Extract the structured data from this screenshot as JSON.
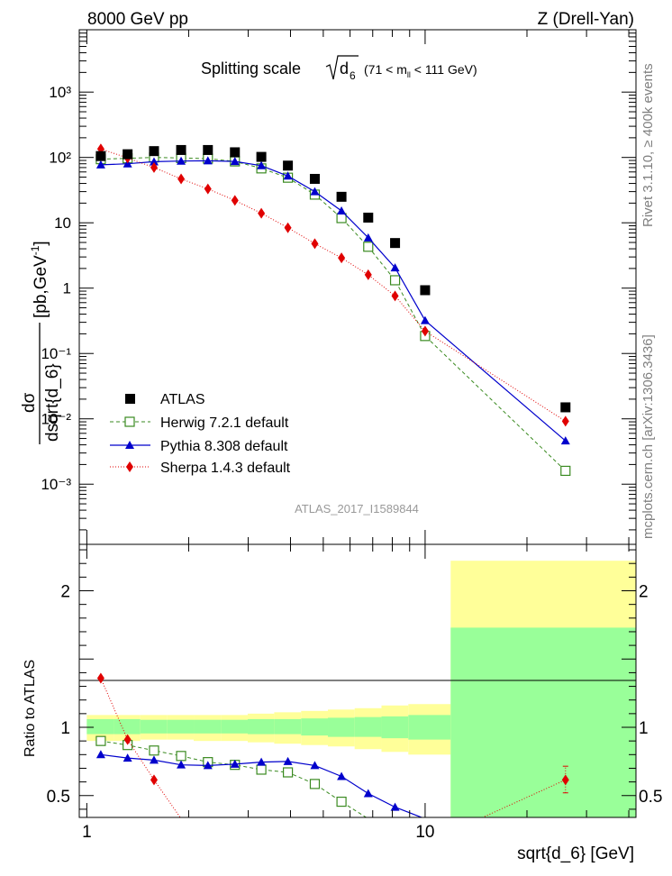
{
  "header": {
    "left": "8000 GeV pp",
    "right": "Z (Drell-Yan)"
  },
  "side_labels": {
    "rivet": "Rivet 3.1.10, ≥ 400k events",
    "mcplots": "mcplots.cern.ch [arXiv:1306.3436]"
  },
  "colors": {
    "atlas": "#000000",
    "herwig": "#3a8a20",
    "pythia": "#0000cc",
    "sherpa": "#e00000",
    "band_inner": "#99ff99",
    "band_outer": "#ffff99"
  },
  "chart_data": [
    {
      "type": "scatter",
      "id": "main",
      "title": "Splitting scale",
      "title_math": "√d6",
      "title_range": "(71 < m_ll < 111 GeV)",
      "ylabel": "dσ / dsqrt{d_6} [pb,GeV⁻¹]",
      "yscale": "log",
      "xscale": "log",
      "xlim": [
        0.95,
        42
      ],
      "ylim": [
        0.00012,
        9000
      ],
      "ytick_labels": [
        "10⁻³",
        "10⁻²",
        "10⁻¹",
        "1",
        "10",
        "10²",
        "10³"
      ],
      "watermark": "ATLAS_2017_I1589844",
      "legend": [
        "ATLAS",
        "Herwig 7.2.1 default",
        "Pythia 8.308 default",
        "Sherpa 1.4.3 default"
      ],
      "series": [
        {
          "name": "ATLAS",
          "x": [
            1.1,
            1.32,
            1.58,
            1.9,
            2.28,
            2.74,
            3.28,
            3.93,
            4.72,
            5.66,
            6.79,
            8.15,
            10.0,
            26.0
          ],
          "values": [
            105,
            112,
            125,
            130,
            130,
            120,
            102,
            75,
            47,
            25,
            12,
            4.9,
            0.93,
            0.015
          ]
        },
        {
          "name": "Herwig 7.2.1 default",
          "x": [
            1.1,
            1.32,
            1.58,
            1.9,
            2.28,
            2.74,
            3.28,
            3.93,
            4.72,
            5.66,
            6.79,
            8.15,
            10.0,
            26.0
          ],
          "values": [
            94,
            97,
            100,
            98,
            96,
            87,
            68,
            49,
            27,
            11.8,
            4.3,
            1.32,
            0.185,
            0.0016
          ]
        },
        {
          "name": "Pythia 8.308 default",
          "x": [
            1.1,
            1.32,
            1.58,
            1.9,
            2.28,
            2.74,
            3.28,
            3.93,
            4.72,
            5.66,
            6.79,
            8.15,
            10.0,
            26.0
          ],
          "values": [
            77,
            80,
            86,
            88,
            89,
            87,
            75,
            52,
            30,
            15.2,
            5.9,
            2.05,
            0.32,
            0.0046
          ]
        },
        {
          "name": "Sherpa 1.4.3 default",
          "x": [
            1.1,
            1.32,
            1.58,
            1.9,
            2.28,
            2.74,
            3.28,
            3.93,
            4.72,
            5.66,
            6.79,
            8.15,
            10.0,
            26.0
          ],
          "values": [
            135,
            98,
            70,
            47,
            33,
            22,
            14,
            8.4,
            4.8,
            2.9,
            1.6,
            0.76,
            0.22,
            0.0092
          ]
        }
      ]
    },
    {
      "type": "line",
      "id": "ratio",
      "ylabel": "Ratio to ATLAS",
      "xlabel": "sqrt{d_6} [GeV]",
      "xscale": "log",
      "xlim": [
        0.95,
        42
      ],
      "ylim": [
        0.34,
        2.34
      ],
      "xtick_labels": [
        "1",
        "10"
      ],
      "ytick_labels": [
        "0.5",
        "1",
        "2"
      ],
      "bands": {
        "edges": [
          1.0,
          1.2,
          1.44,
          1.73,
          2.07,
          2.49,
          2.99,
          3.58,
          4.3,
          5.16,
          6.19,
          7.43,
          8.92,
          11.9,
          42
        ],
        "inner": [
          [
            0.95,
            1.06
          ],
          [
            0.95,
            1.06
          ],
          [
            0.955,
            1.055
          ],
          [
            0.955,
            1.055
          ],
          [
            0.955,
            1.055
          ],
          [
            0.955,
            1.055
          ],
          [
            0.95,
            1.06
          ],
          [
            0.95,
            1.06
          ],
          [
            0.94,
            1.065
          ],
          [
            0.93,
            1.07
          ],
          [
            0.93,
            1.075
          ],
          [
            0.92,
            1.08
          ],
          [
            0.91,
            1.09
          ],
          [
            0.34,
            1.73
          ]
        ],
        "outer": [
          [
            0.9,
            1.09
          ],
          [
            0.9,
            1.09
          ],
          [
            0.91,
            1.09
          ],
          [
            0.91,
            1.09
          ],
          [
            0.9,
            1.09
          ],
          [
            0.9,
            1.09
          ],
          [
            0.89,
            1.1
          ],
          [
            0.88,
            1.11
          ],
          [
            0.87,
            1.12
          ],
          [
            0.86,
            1.13
          ],
          [
            0.84,
            1.14
          ],
          [
            0.82,
            1.16
          ],
          [
            0.8,
            1.17
          ],
          [
            0.34,
            2.22
          ]
        ]
      },
      "series": [
        {
          "name": "Herwig 7.2.1 default",
          "x": [
            1.1,
            1.32,
            1.58,
            1.9,
            2.28,
            2.74,
            3.28,
            3.93,
            4.72,
            5.66,
            6.79
          ],
          "values": [
            0.9,
            0.87,
            0.83,
            0.79,
            0.745,
            0.725,
            0.69,
            0.67,
            0.585,
            0.455,
            0.33
          ]
        },
        {
          "name": "Pythia 8.308 default",
          "x": [
            1.1,
            1.32,
            1.58,
            1.9,
            2.28,
            2.74,
            3.28,
            3.93,
            4.72,
            5.66,
            6.79,
            8.15,
            10.0
          ],
          "values": [
            0.8,
            0.775,
            0.76,
            0.725,
            0.72,
            0.73,
            0.745,
            0.75,
            0.72,
            0.64,
            0.515,
            0.415,
            0.33
          ]
        },
        {
          "name": "Sherpa 1.4.3 default",
          "x": [
            1.1,
            1.32,
            1.58,
            1.9
          ],
          "values": [
            1.36,
            0.91,
            0.615,
            0.33
          ],
          "tail": {
            "x": [
              14.5,
              26.0
            ],
            "values": [
              0.33,
              0.615
            ],
            "err_low": 0.52,
            "err_high": 0.715
          }
        }
      ]
    }
  ]
}
